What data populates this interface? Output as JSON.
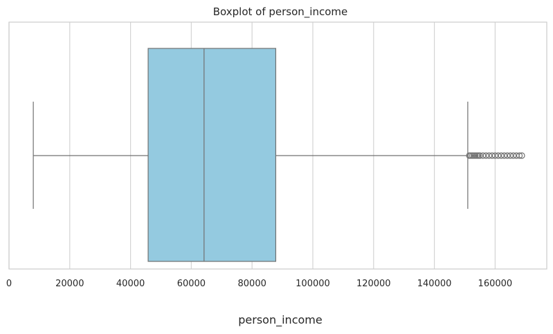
{
  "chart_data": {
    "type": "boxplot",
    "title": "Boxplot of person_income",
    "xlabel": "person_income",
    "ylabel": "",
    "xlim": [
      0,
      177000
    ],
    "x_ticks": [
      0,
      20000,
      40000,
      60000,
      80000,
      100000,
      120000,
      140000,
      160000
    ],
    "x_tick_labels": [
      "0",
      "20000",
      "40000",
      "60000",
      "80000",
      "100000",
      "120000",
      "140000",
      "160000"
    ],
    "grid": true,
    "orientation": "horizontal",
    "box": {
      "whisker_low": 8000,
      "q1": 45800,
      "median": 64200,
      "q3": 87800,
      "whisker_high": 151000
    },
    "outliers": [
      151500,
      152000,
      152500,
      153000,
      153500,
      154000,
      154500,
      155000,
      156000,
      157000,
      158000,
      159000,
      160000,
      161000,
      162000,
      163000,
      164000,
      165000,
      166000,
      167000,
      168000,
      168800
    ],
    "colors": {
      "box_fill": "#94CAE0",
      "line": "#707070",
      "grid": "#D3D3D3",
      "spine": "#CCCCCC"
    }
  }
}
